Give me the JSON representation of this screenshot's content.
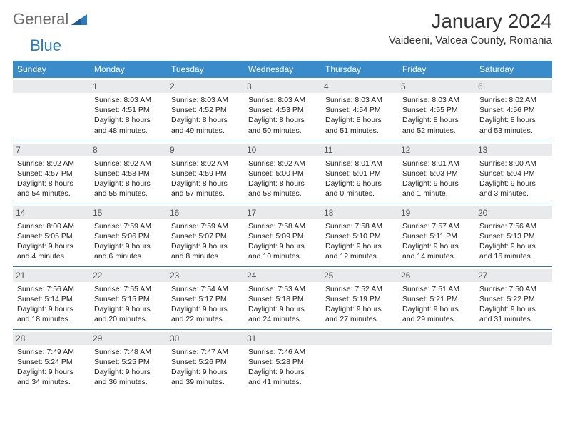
{
  "brand": {
    "part1": "General",
    "part2": "Blue"
  },
  "title": "January 2024",
  "location": "Vaideeni, Valcea County, Romania",
  "colors": {
    "header_bg": "#3a8bc9",
    "header_text": "#ffffff",
    "daynum_bg": "#e9eaeb",
    "row_border": "#3a76a8",
    "brand_gray": "#6b6b6b",
    "brand_blue": "#2b7bbf"
  },
  "weekdays": [
    "Sunday",
    "Monday",
    "Tuesday",
    "Wednesday",
    "Thursday",
    "Friday",
    "Saturday"
  ],
  "weeks": [
    [
      {
        "num": "",
        "sunrise": "",
        "sunset": "",
        "daylight": ""
      },
      {
        "num": "1",
        "sunrise": "Sunrise: 8:03 AM",
        "sunset": "Sunset: 4:51 PM",
        "daylight": "Daylight: 8 hours and 48 minutes."
      },
      {
        "num": "2",
        "sunrise": "Sunrise: 8:03 AM",
        "sunset": "Sunset: 4:52 PM",
        "daylight": "Daylight: 8 hours and 49 minutes."
      },
      {
        "num": "3",
        "sunrise": "Sunrise: 8:03 AM",
        "sunset": "Sunset: 4:53 PM",
        "daylight": "Daylight: 8 hours and 50 minutes."
      },
      {
        "num": "4",
        "sunrise": "Sunrise: 8:03 AM",
        "sunset": "Sunset: 4:54 PM",
        "daylight": "Daylight: 8 hours and 51 minutes."
      },
      {
        "num": "5",
        "sunrise": "Sunrise: 8:03 AM",
        "sunset": "Sunset: 4:55 PM",
        "daylight": "Daylight: 8 hours and 52 minutes."
      },
      {
        "num": "6",
        "sunrise": "Sunrise: 8:02 AM",
        "sunset": "Sunset: 4:56 PM",
        "daylight": "Daylight: 8 hours and 53 minutes."
      }
    ],
    [
      {
        "num": "7",
        "sunrise": "Sunrise: 8:02 AM",
        "sunset": "Sunset: 4:57 PM",
        "daylight": "Daylight: 8 hours and 54 minutes."
      },
      {
        "num": "8",
        "sunrise": "Sunrise: 8:02 AM",
        "sunset": "Sunset: 4:58 PM",
        "daylight": "Daylight: 8 hours and 55 minutes."
      },
      {
        "num": "9",
        "sunrise": "Sunrise: 8:02 AM",
        "sunset": "Sunset: 4:59 PM",
        "daylight": "Daylight: 8 hours and 57 minutes."
      },
      {
        "num": "10",
        "sunrise": "Sunrise: 8:02 AM",
        "sunset": "Sunset: 5:00 PM",
        "daylight": "Daylight: 8 hours and 58 minutes."
      },
      {
        "num": "11",
        "sunrise": "Sunrise: 8:01 AM",
        "sunset": "Sunset: 5:01 PM",
        "daylight": "Daylight: 9 hours and 0 minutes."
      },
      {
        "num": "12",
        "sunrise": "Sunrise: 8:01 AM",
        "sunset": "Sunset: 5:03 PM",
        "daylight": "Daylight: 9 hours and 1 minute."
      },
      {
        "num": "13",
        "sunrise": "Sunrise: 8:00 AM",
        "sunset": "Sunset: 5:04 PM",
        "daylight": "Daylight: 9 hours and 3 minutes."
      }
    ],
    [
      {
        "num": "14",
        "sunrise": "Sunrise: 8:00 AM",
        "sunset": "Sunset: 5:05 PM",
        "daylight": "Daylight: 9 hours and 4 minutes."
      },
      {
        "num": "15",
        "sunrise": "Sunrise: 7:59 AM",
        "sunset": "Sunset: 5:06 PM",
        "daylight": "Daylight: 9 hours and 6 minutes."
      },
      {
        "num": "16",
        "sunrise": "Sunrise: 7:59 AM",
        "sunset": "Sunset: 5:07 PM",
        "daylight": "Daylight: 9 hours and 8 minutes."
      },
      {
        "num": "17",
        "sunrise": "Sunrise: 7:58 AM",
        "sunset": "Sunset: 5:09 PM",
        "daylight": "Daylight: 9 hours and 10 minutes."
      },
      {
        "num": "18",
        "sunrise": "Sunrise: 7:58 AM",
        "sunset": "Sunset: 5:10 PM",
        "daylight": "Daylight: 9 hours and 12 minutes."
      },
      {
        "num": "19",
        "sunrise": "Sunrise: 7:57 AM",
        "sunset": "Sunset: 5:11 PM",
        "daylight": "Daylight: 9 hours and 14 minutes."
      },
      {
        "num": "20",
        "sunrise": "Sunrise: 7:56 AM",
        "sunset": "Sunset: 5:13 PM",
        "daylight": "Daylight: 9 hours and 16 minutes."
      }
    ],
    [
      {
        "num": "21",
        "sunrise": "Sunrise: 7:56 AM",
        "sunset": "Sunset: 5:14 PM",
        "daylight": "Daylight: 9 hours and 18 minutes."
      },
      {
        "num": "22",
        "sunrise": "Sunrise: 7:55 AM",
        "sunset": "Sunset: 5:15 PM",
        "daylight": "Daylight: 9 hours and 20 minutes."
      },
      {
        "num": "23",
        "sunrise": "Sunrise: 7:54 AM",
        "sunset": "Sunset: 5:17 PM",
        "daylight": "Daylight: 9 hours and 22 minutes."
      },
      {
        "num": "24",
        "sunrise": "Sunrise: 7:53 AM",
        "sunset": "Sunset: 5:18 PM",
        "daylight": "Daylight: 9 hours and 24 minutes."
      },
      {
        "num": "25",
        "sunrise": "Sunrise: 7:52 AM",
        "sunset": "Sunset: 5:19 PM",
        "daylight": "Daylight: 9 hours and 27 minutes."
      },
      {
        "num": "26",
        "sunrise": "Sunrise: 7:51 AM",
        "sunset": "Sunset: 5:21 PM",
        "daylight": "Daylight: 9 hours and 29 minutes."
      },
      {
        "num": "27",
        "sunrise": "Sunrise: 7:50 AM",
        "sunset": "Sunset: 5:22 PM",
        "daylight": "Daylight: 9 hours and 31 minutes."
      }
    ],
    [
      {
        "num": "28",
        "sunrise": "Sunrise: 7:49 AM",
        "sunset": "Sunset: 5:24 PM",
        "daylight": "Daylight: 9 hours and 34 minutes."
      },
      {
        "num": "29",
        "sunrise": "Sunrise: 7:48 AM",
        "sunset": "Sunset: 5:25 PM",
        "daylight": "Daylight: 9 hours and 36 minutes."
      },
      {
        "num": "30",
        "sunrise": "Sunrise: 7:47 AM",
        "sunset": "Sunset: 5:26 PM",
        "daylight": "Daylight: 9 hours and 39 minutes."
      },
      {
        "num": "31",
        "sunrise": "Sunrise: 7:46 AM",
        "sunset": "Sunset: 5:28 PM",
        "daylight": "Daylight: 9 hours and 41 minutes."
      },
      {
        "num": "",
        "sunrise": "",
        "sunset": "",
        "daylight": ""
      },
      {
        "num": "",
        "sunrise": "",
        "sunset": "",
        "daylight": ""
      },
      {
        "num": "",
        "sunrise": "",
        "sunset": "",
        "daylight": ""
      }
    ]
  ]
}
